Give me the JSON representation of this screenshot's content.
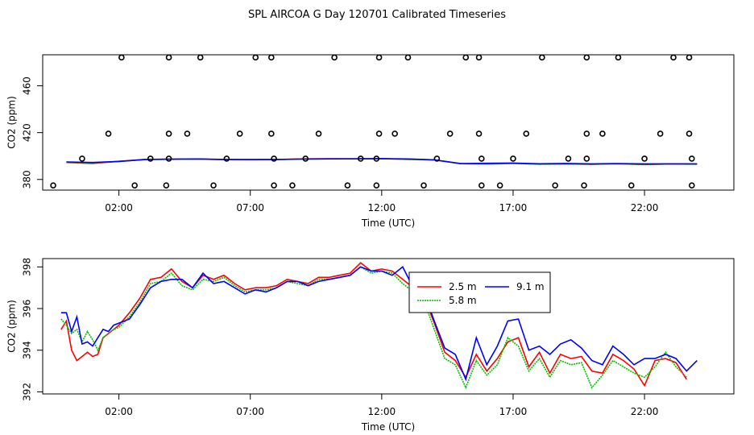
{
  "figure": {
    "title": "SPL AIRCOA G  Day 120701  Calibrated Timeseries"
  },
  "series_colors": {
    "2.5 m": "#ff0000",
    "5.8 m": "#00c000",
    "9.1 m": "#0000ff"
  },
  "chart_data": [
    {
      "type": "line",
      "xlabel": "Time (UTC)",
      "ylabel": "CO2 (ppm)",
      "x_unit": "hours (UTC)",
      "x_ticks": [
        {
          "value": 2,
          "label": "02:00"
        },
        {
          "value": 7,
          "label": "07:00"
        },
        {
          "value": 12,
          "label": "12:00"
        },
        {
          "value": 17,
          "label": "17:00"
        },
        {
          "value": 22,
          "label": "22:00"
        }
      ],
      "y_ticks": [
        {
          "value": 380,
          "label": "380"
        },
        {
          "value": 420,
          "label": "420"
        },
        {
          "value": 460,
          "label": "460"
        }
      ],
      "xlim": [
        -0.9,
        25.4
      ],
      "ylim": [
        370.9,
        486.5
      ],
      "legend": "none",
      "grid": false,
      "series": [
        {
          "name": "2.5 m",
          "x": [
            0,
            1,
            2,
            3,
            4,
            5,
            6,
            7,
            8,
            9,
            10,
            11,
            12,
            13,
            14,
            15,
            16,
            17,
            18,
            19,
            20,
            21,
            22,
            23,
            24
          ],
          "values": [
            394.5,
            393.6,
            395.5,
            397.1,
            397.3,
            397.4,
            397.0,
            397.0,
            397.0,
            397.6,
            397.7,
            397.6,
            397.8,
            397.2,
            396.8,
            393.5,
            393.2,
            393.8,
            393.1,
            393.2,
            393.0,
            393.4,
            392.7,
            393.3,
            393.1
          ]
        },
        {
          "name": "5.8 m",
          "x": [
            0,
            1,
            2,
            3,
            4,
            5,
            6,
            7,
            8,
            9,
            10,
            11,
            12,
            13,
            14,
            15,
            16,
            17,
            18,
            19,
            20,
            21,
            22,
            23,
            24
          ],
          "values": [
            394.6,
            394.1,
            395.3,
            397.0,
            397.2,
            397.4,
            397.0,
            397.0,
            397.0,
            397.4,
            397.5,
            397.6,
            397.8,
            397.1,
            396.7,
            393.5,
            393.1,
            393.6,
            393.0,
            393.2,
            393.0,
            393.3,
            392.8,
            393.2,
            393.0
          ]
        },
        {
          "name": "9.1 m",
          "x": [
            0,
            1,
            2,
            3,
            4,
            5,
            6,
            7,
            8,
            9,
            10,
            11,
            12,
            13,
            14,
            15,
            16,
            17,
            18,
            19,
            20,
            21,
            22,
            23,
            24
          ],
          "values": [
            395.0,
            394.5,
            395.4,
            397.1,
            397.3,
            397.5,
            397.1,
            397.0,
            397.1,
            397.4,
            397.6,
            397.6,
            397.8,
            397.5,
            396.8,
            393.6,
            393.8,
            394.0,
            393.4,
            393.7,
            393.3,
            393.6,
            393.3,
            393.3,
            393.3
          ]
        }
      ],
      "points": {
        "type": "scatter",
        "marker": "open circle",
        "values": [
          [
            -0.5,
            374.9
          ],
          [
            0.6,
            397.8
          ],
          [
            1.6,
            419.1
          ],
          [
            2.1,
            484.2
          ],
          [
            2.6,
            374.9
          ],
          [
            3.2,
            397.8
          ],
          [
            3.8,
            374.9
          ],
          [
            3.9,
            397.8
          ],
          [
            3.9,
            419.1
          ],
          [
            3.9,
            484.2
          ],
          [
            4.6,
            419.1
          ],
          [
            5.1,
            484.2
          ],
          [
            5.6,
            374.9
          ],
          [
            6.1,
            397.8
          ],
          [
            6.6,
            419.1
          ],
          [
            7.2,
            484.2
          ],
          [
            7.8,
            484.2
          ],
          [
            7.8,
            419.1
          ],
          [
            7.9,
            374.9
          ],
          [
            7.9,
            397.8
          ],
          [
            8.6,
            374.9
          ],
          [
            9.1,
            397.8
          ],
          [
            9.6,
            419.1
          ],
          [
            10.2,
            484.2
          ],
          [
            10.7,
            374.9
          ],
          [
            11.2,
            397.8
          ],
          [
            11.8,
            374.9
          ],
          [
            11.8,
            397.8
          ],
          [
            11.9,
            419.1
          ],
          [
            11.9,
            484.2
          ],
          [
            12.5,
            419.1
          ],
          [
            13.0,
            484.2
          ],
          [
            13.6,
            374.9
          ],
          [
            14.1,
            397.8
          ],
          [
            14.6,
            419.1
          ],
          [
            15.2,
            484.2
          ],
          [
            15.7,
            484.2
          ],
          [
            15.7,
            419.1
          ],
          [
            15.8,
            374.9
          ],
          [
            15.8,
            397.8
          ],
          [
            16.5,
            374.9
          ],
          [
            17.0,
            397.8
          ],
          [
            17.5,
            419.1
          ],
          [
            18.1,
            484.2
          ],
          [
            18.6,
            374.9
          ],
          [
            19.1,
            397.8
          ],
          [
            19.7,
            374.9
          ],
          [
            19.8,
            397.8
          ],
          [
            19.8,
            419.1
          ],
          [
            19.8,
            484.2
          ],
          [
            20.4,
            419.1
          ],
          [
            21.0,
            484.2
          ],
          [
            21.5,
            374.9
          ],
          [
            22.0,
            397.8
          ],
          [
            22.6,
            419.1
          ],
          [
            23.1,
            484.2
          ],
          [
            23.7,
            484.2
          ],
          [
            23.7,
            419.1
          ],
          [
            23.8,
            374.9
          ],
          [
            23.8,
            397.8
          ]
        ]
      }
    },
    {
      "type": "line",
      "xlabel": "Time (UTC)",
      "ylabel": "CO2 (ppm)",
      "x_unit": "hours (UTC)",
      "x_ticks": [
        {
          "value": 2,
          "label": "02:00"
        },
        {
          "value": 7,
          "label": "07:00"
        },
        {
          "value": 12,
          "label": "12:00"
        },
        {
          "value": 17,
          "label": "17:00"
        },
        {
          "value": 22,
          "label": "22:00"
        }
      ],
      "y_ticks": [
        {
          "value": 392,
          "label": "392"
        },
        {
          "value": 394,
          "label": "394"
        },
        {
          "value": 396,
          "label": "396"
        },
        {
          "value": 398,
          "label": "398"
        }
      ],
      "xlim": [
        -0.9,
        25.4
      ],
      "ylim": [
        391.9,
        398.4
      ],
      "legend": "inside, upper-right of center",
      "grid": false,
      "series": [
        {
          "name": "2.5 m",
          "x": [
            -0.2,
            0.0,
            0.2,
            0.4,
            0.6,
            0.8,
            1.0,
            1.2,
            1.4,
            1.6,
            1.8,
            2.0,
            2.4,
            2.8,
            3.2,
            3.6,
            4.0,
            4.4,
            4.8,
            5.2,
            5.6,
            6.0,
            6.4,
            6.8,
            7.2,
            7.6,
            8.0,
            8.4,
            8.8,
            9.2,
            9.6,
            10.0,
            10.4,
            10.8,
            11.2,
            11.6,
            12.0,
            12.4,
            12.8,
            13.2,
            13.6,
            14.0,
            14.4,
            14.8,
            15.2,
            15.6,
            16.0,
            16.4,
            16.8,
            17.2,
            17.6,
            18.0,
            18.4,
            18.8,
            19.2,
            19.6,
            20.0,
            20.4,
            20.8,
            21.2,
            21.6,
            22.0,
            22.4,
            22.8,
            23.2,
            23.6
          ],
          "values": [
            395.0,
            395.4,
            394.0,
            393.5,
            393.7,
            393.9,
            393.7,
            393.8,
            394.6,
            394.8,
            395.0,
            395.2,
            395.8,
            396.5,
            397.4,
            397.5,
            397.9,
            397.3,
            397.0,
            397.6,
            397.4,
            397.6,
            397.2,
            396.9,
            397.0,
            397.0,
            397.1,
            397.4,
            397.3,
            397.2,
            397.5,
            397.5,
            397.6,
            397.7,
            398.2,
            397.8,
            397.9,
            397.8,
            397.4,
            397.0,
            396.6,
            395.3,
            393.9,
            393.5,
            392.7,
            393.8,
            393.0,
            393.6,
            394.4,
            394.6,
            393.2,
            393.9,
            392.9,
            393.8,
            393.6,
            393.7,
            393.0,
            392.9,
            393.8,
            393.5,
            393.1,
            392.3,
            393.5,
            393.6,
            393.4,
            392.6
          ]
        },
        {
          "name": "5.8 m",
          "x": [
            -0.2,
            0.0,
            0.2,
            0.4,
            0.6,
            0.8,
            1.0,
            1.2,
            1.4,
            1.6,
            1.8,
            2.0,
            2.4,
            2.8,
            3.2,
            3.6,
            4.0,
            4.4,
            4.8,
            5.2,
            5.6,
            6.0,
            6.4,
            6.8,
            7.2,
            7.6,
            8.0,
            8.4,
            8.8,
            9.2,
            9.6,
            10.0,
            10.4,
            10.8,
            11.2,
            11.6,
            12.0,
            12.4,
            12.8,
            13.2,
            13.6,
            14.0,
            14.4,
            14.8,
            15.2,
            15.6,
            16.0,
            16.4,
            16.8,
            17.2,
            17.6,
            18.0,
            18.4,
            18.8,
            19.2,
            19.6,
            20.0,
            20.4,
            20.8,
            21.2,
            21.6,
            22.0,
            22.4,
            22.8,
            23.2,
            23.6
          ],
          "values": [
            395.5,
            395.2,
            394.8,
            395.0,
            394.4,
            394.9,
            394.5,
            394.0,
            394.6,
            394.8,
            395.0,
            395.1,
            395.6,
            396.3,
            397.2,
            397.3,
            397.7,
            397.1,
            396.9,
            397.4,
            397.3,
            397.5,
            397.1,
            396.8,
            396.9,
            396.9,
            397.0,
            397.3,
            397.2,
            397.1,
            397.4,
            397.4,
            397.5,
            397.6,
            398.0,
            397.7,
            397.8,
            397.7,
            397.2,
            396.8,
            396.4,
            395.0,
            393.6,
            393.3,
            392.2,
            393.5,
            392.8,
            393.3,
            394.6,
            394.2,
            393.0,
            393.6,
            392.7,
            393.5,
            393.3,
            393.4,
            392.2,
            392.8,
            393.5,
            393.2,
            392.9,
            392.7,
            393.2,
            393.9,
            393.2,
            392.7
          ]
        },
        {
          "name": "9.1 m",
          "x": [
            -0.2,
            0.0,
            0.2,
            0.4,
            0.6,
            0.8,
            1.0,
            1.2,
            1.4,
            1.6,
            1.8,
            2.0,
            2.4,
            2.8,
            3.2,
            3.6,
            4.0,
            4.4,
            4.8,
            5.2,
            5.6,
            6.0,
            6.4,
            6.8,
            7.2,
            7.6,
            8.0,
            8.4,
            8.8,
            9.2,
            9.6,
            10.0,
            10.4,
            10.8,
            11.2,
            11.6,
            12.0,
            12.4,
            12.8,
            13.2,
            13.6,
            14.0,
            14.4,
            14.8,
            15.2,
            15.6,
            16.0,
            16.4,
            16.8,
            17.2,
            17.6,
            18.0,
            18.4,
            18.8,
            19.2,
            19.6,
            20.0,
            20.4,
            20.8,
            21.2,
            21.6,
            22.0,
            22.4,
            22.8,
            23.2,
            23.6,
            24.0
          ],
          "values": [
            395.8,
            395.8,
            394.9,
            395.6,
            394.3,
            394.4,
            394.2,
            394.6,
            395.0,
            394.9,
            395.2,
            395.3,
            395.5,
            396.2,
            397.0,
            397.3,
            397.4,
            397.4,
            397.0,
            397.7,
            397.2,
            397.3,
            397.0,
            396.7,
            396.9,
            396.8,
            397.0,
            397.3,
            397.3,
            397.1,
            397.3,
            397.4,
            397.5,
            397.6,
            398.0,
            397.8,
            397.8,
            397.6,
            398.0,
            397.0,
            396.8,
            395.4,
            394.1,
            393.8,
            392.6,
            394.6,
            393.3,
            394.2,
            395.4,
            395.5,
            394.0,
            394.2,
            393.8,
            394.3,
            394.5,
            394.1,
            393.5,
            393.3,
            394.2,
            393.8,
            393.3,
            393.6,
            393.6,
            393.8,
            393.6,
            393.0,
            393.5
          ]
        }
      ]
    }
  ]
}
